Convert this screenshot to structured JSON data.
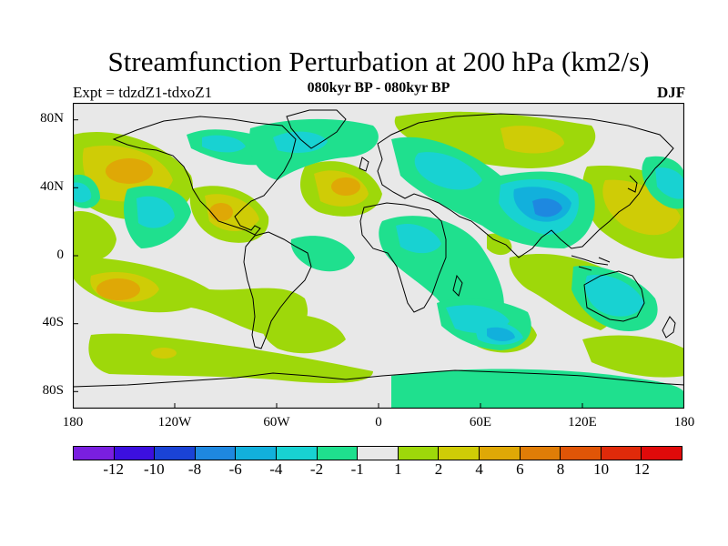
{
  "title": "Streamfunction Perturbation at 200 hPa (km2/s)",
  "subtitle_left": "Expt = tdzdZ1-tdxoZ1",
  "subtitle_center": "080kyr BP - 080kyr BP",
  "subtitle_right": "DJF",
  "lat_labels": [
    "80N",
    "40N",
    "0",
    "40S",
    "80S"
  ],
  "lon_labels": [
    "180",
    "120W",
    "60W",
    "0",
    "60E",
    "120E",
    "180"
  ],
  "colorbar": {
    "labels": [
      "-12",
      "-10",
      "-8",
      "-6",
      "-4",
      "-2",
      "-1",
      "1",
      "2",
      "4",
      "6",
      "8",
      "10",
      "12"
    ],
    "colors": [
      "#7a1fe0",
      "#3c0fdf",
      "#1a43d6",
      "#1e88e0",
      "#12b0dc",
      "#18d2d2",
      "#1fe08e",
      "#e8e8e8",
      "#9ed80a",
      "#cfcc06",
      "#dfa806",
      "#e07d07",
      "#e05507",
      "#e02a0a",
      "#e00a0a"
    ]
  },
  "colors": {
    "bg": "#e8e8e8",
    "pos1": "#9ed80a",
    "pos2": "#cfcc06",
    "pos3": "#dfa806",
    "neg1": "#1fe08e",
    "neg2": "#18d2d2",
    "neg3": "#12b0dc",
    "neg4": "#1e88e0"
  }
}
